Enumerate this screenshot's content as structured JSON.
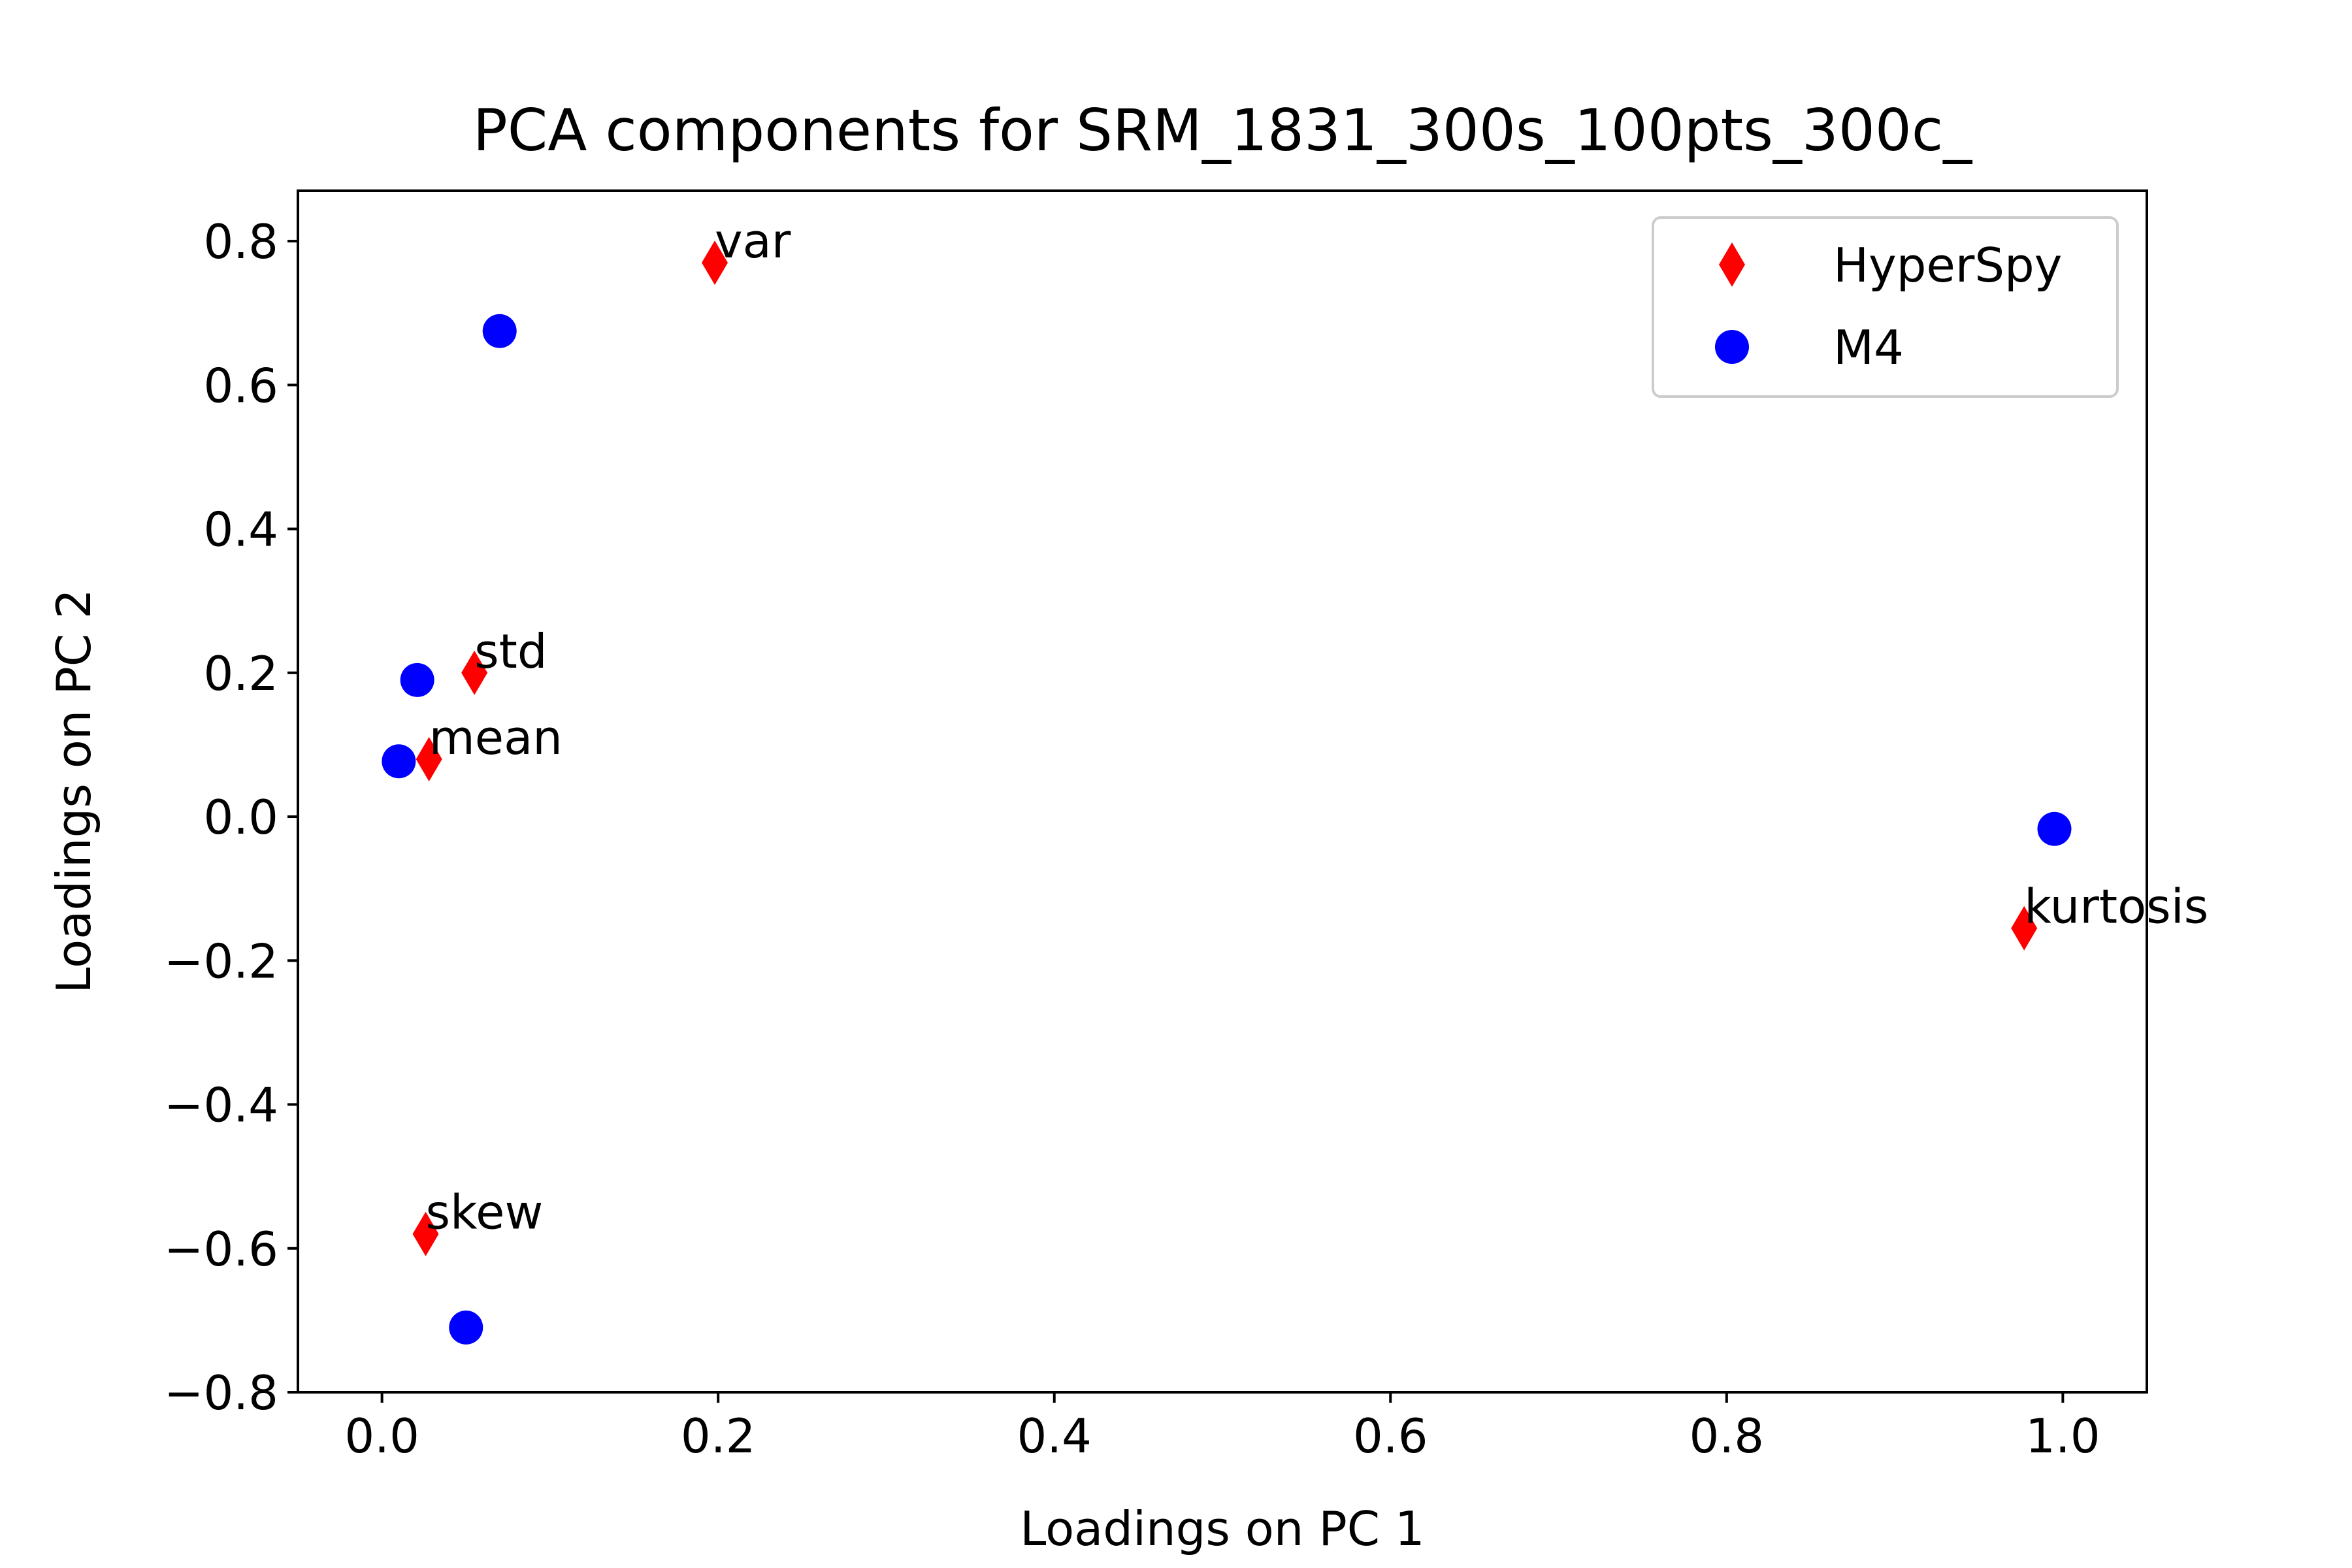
{
  "chart_data": {
    "type": "scatter",
    "title": "PCA components for SRM_1831_300s_100pts_300c_",
    "xlabel": "Loadings on PC 1",
    "ylabel": "Loadings on PC 2",
    "xlim": [
      -0.05,
      1.05
    ],
    "ylim": [
      -0.8,
      0.87
    ],
    "xticks": [
      0.0,
      0.2,
      0.4,
      0.6,
      0.8,
      1.0
    ],
    "xtick_labels": [
      "0.0",
      "0.2",
      "0.4",
      "0.6",
      "0.8",
      "1.0"
    ],
    "yticks": [
      -0.8,
      -0.6,
      -0.4,
      -0.2,
      0.0,
      0.2,
      0.4,
      0.6,
      0.8
    ],
    "ytick_labels": [
      "−0.8",
      "−0.6",
      "−0.4",
      "−0.2",
      "0.0",
      "0.2",
      "0.4",
      "0.6",
      "0.8"
    ],
    "grid": false,
    "legend_position": "top-right",
    "series": [
      {
        "name": "HyperSpy",
        "marker": "diamond",
        "color": "#ff0000",
        "points": [
          {
            "x": 0.028,
            "y": 0.08,
            "label": "mean"
          },
          {
            "x": 0.055,
            "y": 0.2,
            "label": "std"
          },
          {
            "x": 0.198,
            "y": 0.77,
            "label": "var"
          },
          {
            "x": 0.026,
            "y": -0.58,
            "label": "skew"
          },
          {
            "x": 0.977,
            "y": -0.155,
            "label": "kurtosis"
          }
        ]
      },
      {
        "name": "M4",
        "marker": "circle",
        "color": "#0000ff",
        "points": [
          {
            "x": 0.01,
            "y": 0.077
          },
          {
            "x": 0.021,
            "y": 0.19
          },
          {
            "x": 0.07,
            "y": 0.675
          },
          {
            "x": 0.05,
            "y": -0.71
          },
          {
            "x": 0.995,
            "y": -0.017
          }
        ]
      }
    ]
  }
}
